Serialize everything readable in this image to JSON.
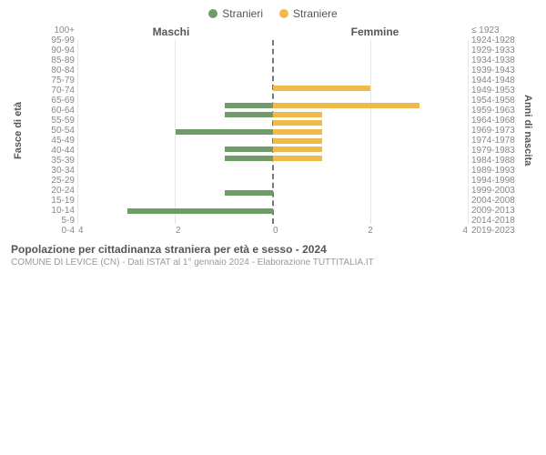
{
  "legend": {
    "male": {
      "label": "Stranieri",
      "color": "#6f9b68"
    },
    "female": {
      "label": "Straniere",
      "color": "#f1b84a"
    }
  },
  "column_headers": {
    "left": "Maschi",
    "right": "Femmine"
  },
  "axis_labels": {
    "left": "Fasce di età",
    "right": "Anni di nascita"
  },
  "chart": {
    "type": "population-pyramid",
    "xmax": 4,
    "xtick_step": 2,
    "bar_color_male": "#6f9b68",
    "bar_color_female": "#f1b84a",
    "grid_color": "#e6e6e6",
    "center_color": "#777777",
    "background_color": "#ffffff",
    "tick_label_color": "#888888",
    "text_color": "#555555",
    "bar_height_pct": 62,
    "age_labels": [
      "100+",
      "95-99",
      "90-94",
      "85-89",
      "80-84",
      "75-79",
      "70-74",
      "65-69",
      "60-64",
      "55-59",
      "50-54",
      "45-49",
      "40-44",
      "35-39",
      "30-34",
      "25-29",
      "20-24",
      "15-19",
      "10-14",
      "5-9",
      "0-4"
    ],
    "year_labels": [
      "≤ 1923",
      "1924-1928",
      "1929-1933",
      "1934-1938",
      "1939-1943",
      "1944-1948",
      "1949-1953",
      "1954-1958",
      "1959-1963",
      "1964-1968",
      "1969-1973",
      "1974-1978",
      "1979-1983",
      "1984-1988",
      "1989-1993",
      "1994-1998",
      "1999-2003",
      "2004-2008",
      "2009-2013",
      "2014-2018",
      "2019-2023"
    ],
    "male_values": [
      0,
      0,
      0,
      0,
      0,
      0,
      0,
      1,
      1,
      0,
      2,
      0,
      1,
      1,
      0,
      0,
      0,
      1,
      0,
      3,
      0
    ],
    "female_values": [
      0,
      0,
      0,
      0,
      0,
      2,
      0,
      3,
      1,
      1,
      1,
      1,
      1,
      1,
      0,
      0,
      0,
      0,
      0,
      0,
      0
    ]
  },
  "footer": {
    "title": "Popolazione per cittadinanza straniera per età e sesso - 2024",
    "subtitle": "COMUNE DI LEVICE (CN) - Dati ISTAT al 1° gennaio 2024 - Elaborazione TUTTITALIA.IT"
  }
}
